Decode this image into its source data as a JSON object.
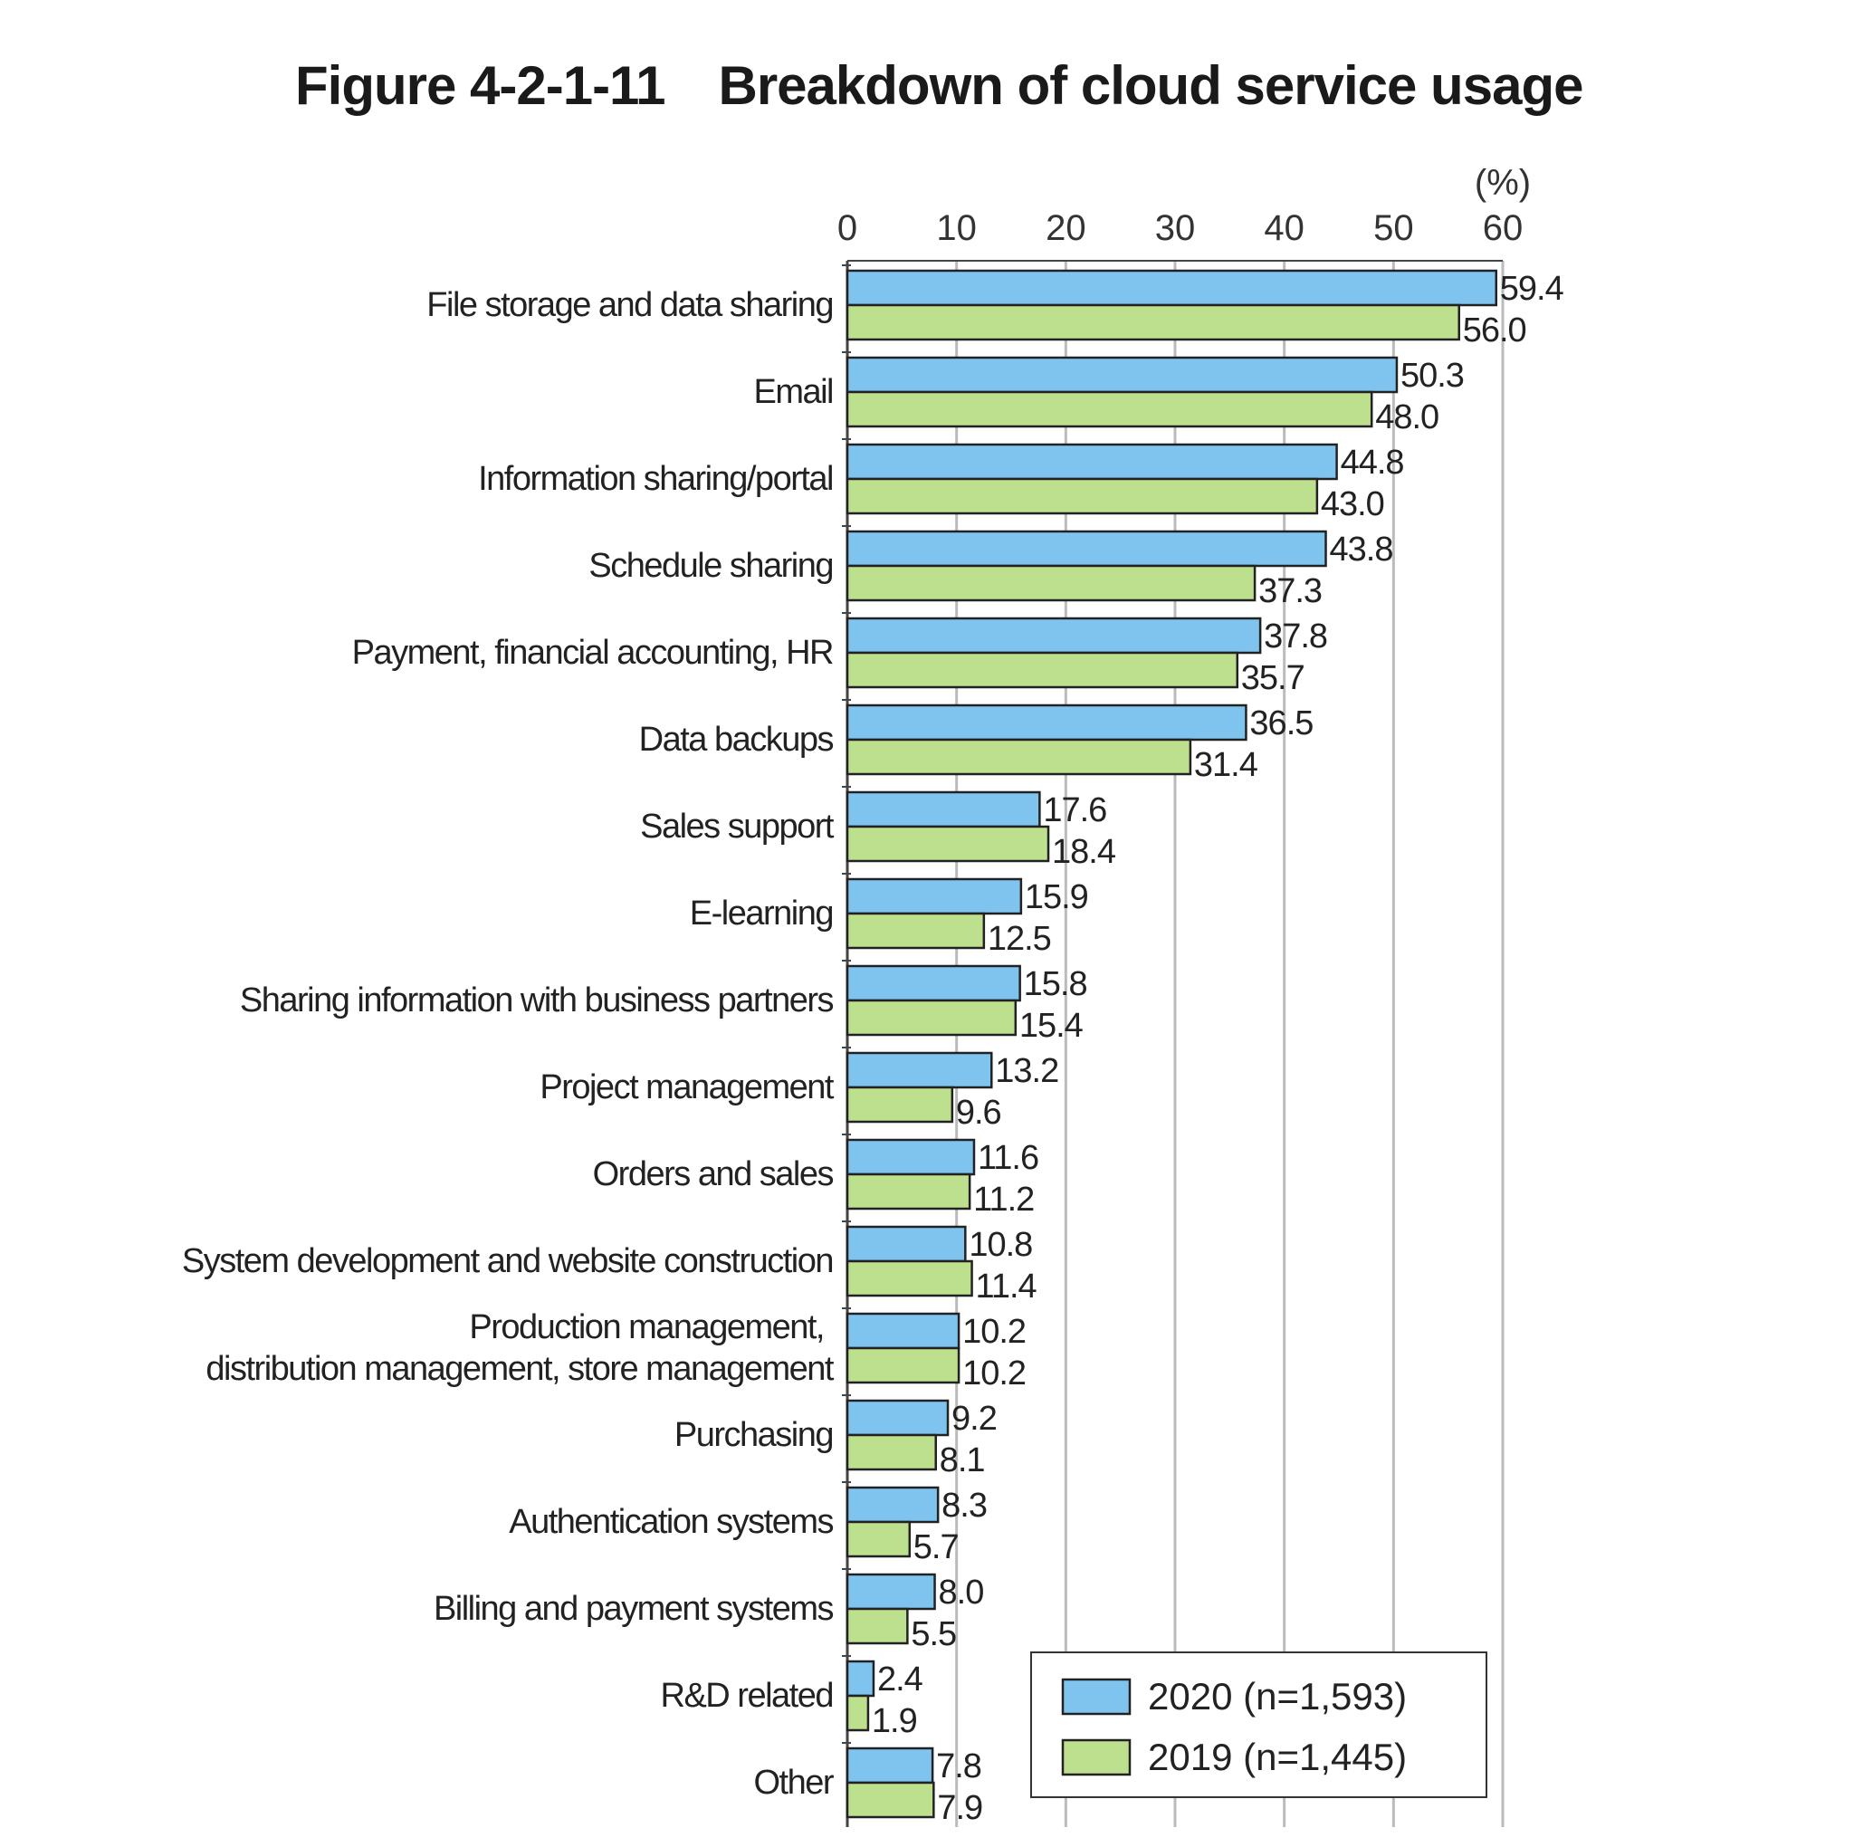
{
  "chart_data": {
    "type": "bar",
    "orientation": "horizontal",
    "title": "Figure 4-2-1-11　Breakdown of cloud service usage",
    "unit_label": "(%)",
    "xlim": [
      0,
      60
    ],
    "xticks": [
      0,
      10,
      20,
      30,
      40,
      50,
      60
    ],
    "grid": true,
    "legend_position": "bottom-right",
    "categories": [
      [
        "File storage and data sharing"
      ],
      [
        "Email"
      ],
      [
        "Information sharing/portal"
      ],
      [
        "Schedule sharing"
      ],
      [
        "Payment, financial accounting, HR"
      ],
      [
        "Data backups"
      ],
      [
        "Sales support"
      ],
      [
        "E-learning"
      ],
      [
        "Sharing information with business partners"
      ],
      [
        "Project management"
      ],
      [
        "Orders and sales"
      ],
      [
        "System development and website construction"
      ],
      [
        "Production management,",
        "distribution management, store management"
      ],
      [
        "Purchasing"
      ],
      [
        "Authentication systems"
      ],
      [
        "Billing and payment systems"
      ],
      [
        "R&D related"
      ],
      [
        "Other"
      ]
    ],
    "series": [
      {
        "name": "2020 (n=1,593)",
        "color": "#7fc4ee",
        "values": [
          59.4,
          50.3,
          44.8,
          43.8,
          37.8,
          36.5,
          17.6,
          15.9,
          15.8,
          13.2,
          11.6,
          10.8,
          10.2,
          9.2,
          8.3,
          8.0,
          2.4,
          7.8
        ]
      },
      {
        "name": "2019 (n=1,445)",
        "color": "#bde08f",
        "values": [
          56.0,
          48.0,
          43.0,
          37.3,
          35.7,
          31.4,
          18.4,
          12.5,
          15.4,
          9.6,
          11.2,
          11.4,
          10.2,
          8.1,
          5.7,
          5.5,
          1.9,
          7.9
        ]
      }
    ]
  }
}
